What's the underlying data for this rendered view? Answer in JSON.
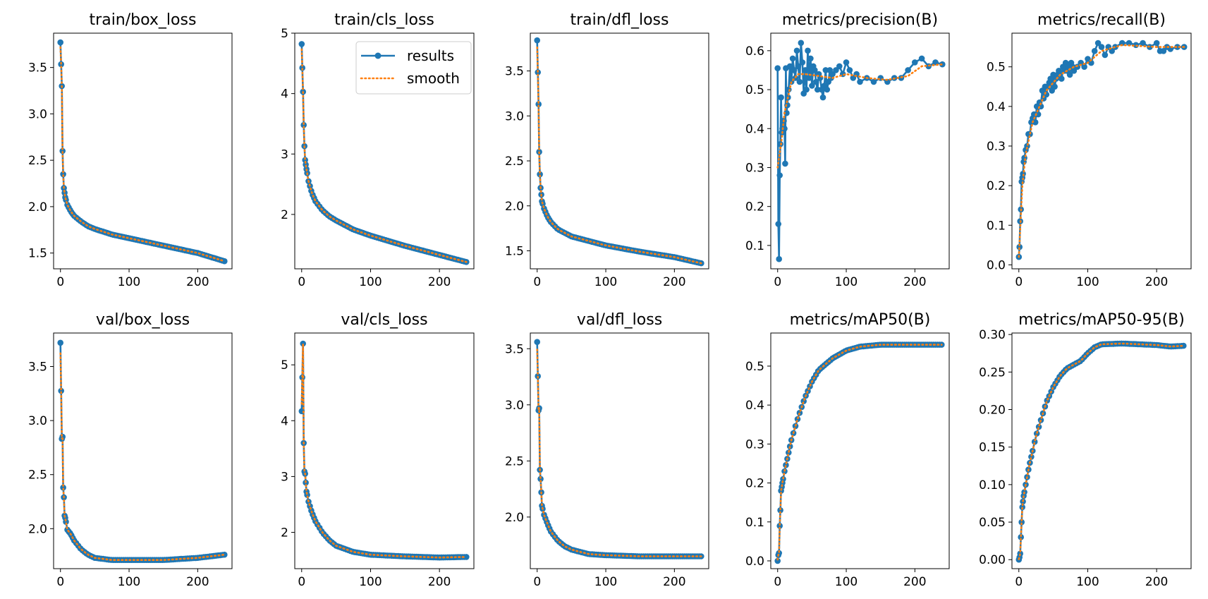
{
  "style": {
    "results_color": "#1f77b4",
    "smooth_color": "#ff7f0e"
  },
  "legend": {
    "results_label": "results",
    "smooth_label": "smooth",
    "location": "top-right of train/cls_loss panel"
  },
  "chart_data": [
    {
      "type": "line",
      "title": "train/box_loss",
      "xlim": [
        -10,
        250
      ],
      "ylim": [
        1.33,
        3.87
      ],
      "x_ticks": [
        "0",
        "100",
        "200"
      ],
      "y_ticks": [
        "1.5",
        "2.0",
        "2.5",
        "3.0",
        "3.5"
      ],
      "anchors": [
        [
          0,
          3.77
        ],
        [
          2,
          3.3
        ],
        [
          3,
          2.6
        ],
        [
          4,
          2.35
        ],
        [
          5,
          2.2
        ],
        [
          7,
          2.1
        ],
        [
          10,
          2.02
        ],
        [
          15,
          1.95
        ],
        [
          20,
          1.9
        ],
        [
          30,
          1.84
        ],
        [
          40,
          1.79
        ],
        [
          50,
          1.76
        ],
        [
          75,
          1.7
        ],
        [
          100,
          1.66
        ],
        [
          150,
          1.58
        ],
        [
          200,
          1.5
        ],
        [
          240,
          1.41
        ]
      ]
    },
    {
      "type": "line",
      "title": "train/cls_loss",
      "xlim": [
        -10,
        250
      ],
      "ylim": [
        1.1,
        5.0
      ],
      "x_ticks": [
        "0",
        "100",
        "200"
      ],
      "y_ticks": [
        "2",
        "3",
        "4",
        "5"
      ],
      "anchors": [
        [
          0,
          4.82
        ],
        [
          2,
          4.03
        ],
        [
          3,
          3.48
        ],
        [
          4,
          3.13
        ],
        [
          5,
          2.9
        ],
        [
          7,
          2.75
        ],
        [
          10,
          2.55
        ],
        [
          15,
          2.35
        ],
        [
          20,
          2.22
        ],
        [
          30,
          2.07
        ],
        [
          40,
          1.97
        ],
        [
          50,
          1.9
        ],
        [
          75,
          1.75
        ],
        [
          100,
          1.65
        ],
        [
          150,
          1.48
        ],
        [
          200,
          1.33
        ],
        [
          240,
          1.21
        ]
      ]
    },
    {
      "type": "line",
      "title": "train/dfl_loss",
      "xlim": [
        -10,
        250
      ],
      "ylim": [
        1.3,
        3.92
      ],
      "x_ticks": [
        "0",
        "100",
        "200"
      ],
      "y_ticks": [
        "1.5",
        "2.0",
        "2.5",
        "3.0",
        "3.5"
      ],
      "anchors": [
        [
          0,
          3.84
        ],
        [
          2,
          3.13
        ],
        [
          3,
          2.6
        ],
        [
          4,
          2.35
        ],
        [
          5,
          2.2
        ],
        [
          7,
          2.05
        ],
        [
          10,
          1.97
        ],
        [
          15,
          1.88
        ],
        [
          20,
          1.82
        ],
        [
          30,
          1.74
        ],
        [
          40,
          1.7
        ],
        [
          50,
          1.66
        ],
        [
          75,
          1.61
        ],
        [
          100,
          1.56
        ],
        [
          150,
          1.49
        ],
        [
          200,
          1.43
        ],
        [
          240,
          1.36
        ]
      ]
    },
    {
      "type": "line",
      "title": "metrics/precision(B)",
      "xlim": [
        -10,
        250
      ],
      "ylim": [
        0.04,
        0.645
      ],
      "x_ticks": [
        "0",
        "100",
        "200"
      ],
      "y_ticks": [
        "0.1",
        "0.2",
        "0.3",
        "0.4",
        "0.5",
        "0.6"
      ],
      "series": [
        {
          "name": "results",
          "x": [
            0,
            1,
            2,
            3,
            4,
            5,
            6,
            7,
            8,
            9,
            10,
            11,
            12,
            13,
            14,
            15,
            16,
            18,
            20,
            22,
            24,
            26,
            28,
            30,
            32,
            34,
            36,
            38,
            40,
            42,
            44,
            46,
            48,
            50,
            52,
            54,
            56,
            58,
            60,
            62,
            64,
            66,
            68,
            70,
            72,
            74,
            76,
            78,
            80,
            85,
            90,
            95,
            100,
            105,
            110,
            115,
            120,
            130,
            140,
            150,
            160,
            170,
            180,
            190,
            200,
            210,
            220,
            230,
            240
          ],
          "y": [
            0.555,
            0.155,
            0.065,
            0.28,
            0.36,
            0.48,
            0.39,
            0.4,
            0.41,
            0.42,
            0.4,
            0.31,
            0.555,
            0.44,
            0.46,
            0.48,
            0.5,
            0.56,
            0.52,
            0.58,
            0.55,
            0.53,
            0.6,
            0.56,
            0.52,
            0.62,
            0.57,
            0.49,
            0.55,
            0.5,
            0.6,
            0.53,
            0.58,
            0.51,
            0.56,
            0.55,
            0.52,
            0.5,
            0.54,
            0.53,
            0.5,
            0.48,
            0.51,
            0.55,
            0.5,
            0.52,
            0.55,
            0.53,
            0.54,
            0.55,
            0.56,
            0.54,
            0.57,
            0.55,
            0.53,
            0.54,
            0.52,
            0.53,
            0.52,
            0.53,
            0.52,
            0.53,
            0.53,
            0.55,
            0.57,
            0.58,
            0.56,
            0.57,
            0.565
          ]
        },
        {
          "name": "smooth",
          "x": [
            0,
            5,
            10,
            20,
            30,
            40,
            60,
            80,
            100,
            130,
            160,
            190,
            210,
            240
          ],
          "y": [
            0.3,
            0.36,
            0.44,
            0.52,
            0.54,
            0.54,
            0.535,
            0.53,
            0.54,
            0.53,
            0.525,
            0.535,
            0.56,
            0.565
          ]
        }
      ]
    },
    {
      "type": "line",
      "title": "metrics/recall(B)",
      "xlim": [
        -10,
        250
      ],
      "ylim": [
        -0.01,
        0.585
      ],
      "x_ticks": [
        "0",
        "100",
        "200"
      ],
      "y_ticks": [
        "0.0",
        "0.1",
        "0.2",
        "0.3",
        "0.4",
        "0.5"
      ],
      "series": [
        {
          "name": "results",
          "x": [
            0,
            1,
            2,
            3,
            4,
            5,
            6,
            7,
            8,
            10,
            12,
            14,
            16,
            18,
            20,
            22,
            24,
            26,
            28,
            30,
            32,
            34,
            36,
            38,
            40,
            42,
            44,
            46,
            48,
            50,
            52,
            54,
            56,
            58,
            60,
            62,
            64,
            66,
            68,
            70,
            72,
            74,
            76,
            78,
            80,
            85,
            90,
            95,
            100,
            105,
            110,
            115,
            120,
            125,
            130,
            135,
            140,
            150,
            160,
            170,
            180,
            190,
            200,
            205,
            210,
            215,
            220,
            230,
            240
          ],
          "y": [
            0.02,
            0.045,
            0.11,
            0.14,
            0.21,
            0.22,
            0.23,
            0.26,
            0.27,
            0.29,
            0.3,
            0.33,
            0.33,
            0.36,
            0.37,
            0.38,
            0.36,
            0.4,
            0.38,
            0.41,
            0.4,
            0.44,
            0.42,
            0.45,
            0.43,
            0.45,
            0.46,
            0.47,
            0.44,
            0.48,
            0.45,
            0.47,
            0.48,
            0.49,
            0.48,
            0.47,
            0.5,
            0.49,
            0.51,
            0.49,
            0.5,
            0.48,
            0.51,
            0.5,
            0.49,
            0.5,
            0.51,
            0.5,
            0.52,
            0.51,
            0.54,
            0.56,
            0.55,
            0.53,
            0.55,
            0.54,
            0.55,
            0.56,
            0.56,
            0.555,
            0.56,
            0.55,
            0.56,
            0.54,
            0.54,
            0.55,
            0.545,
            0.55,
            0.55
          ]
        },
        {
          "name": "smooth",
          "x": [
            0,
            5,
            10,
            20,
            30,
            40,
            60,
            80,
            100,
            120,
            150,
            200,
            240
          ],
          "y": [
            0.02,
            0.2,
            0.28,
            0.36,
            0.4,
            0.44,
            0.48,
            0.5,
            0.51,
            0.54,
            0.555,
            0.55,
            0.55
          ]
        }
      ]
    },
    {
      "type": "line",
      "title": "val/box_loss",
      "xlim": [
        -10,
        250
      ],
      "ylim": [
        1.63,
        3.81
      ],
      "x_ticks": [
        "0",
        "100",
        "200"
      ],
      "y_ticks": [
        "2.0",
        "2.5",
        "3.0",
        "3.5"
      ],
      "anchors": [
        [
          0,
          3.72
        ],
        [
          2,
          2.83
        ],
        [
          3,
          2.85
        ],
        [
          4,
          2.38
        ],
        [
          5,
          2.29
        ],
        [
          6,
          2.12
        ],
        [
          7,
          2.1
        ],
        [
          10,
          1.99
        ],
        [
          15,
          1.95
        ],
        [
          20,
          1.89
        ],
        [
          30,
          1.81
        ],
        [
          40,
          1.76
        ],
        [
          50,
          1.73
        ],
        [
          75,
          1.71
        ],
        [
          100,
          1.71
        ],
        [
          150,
          1.71
        ],
        [
          200,
          1.73
        ],
        [
          240,
          1.76
        ]
      ]
    },
    {
      "type": "line",
      "title": "val/cls_loss",
      "xlim": [
        -10,
        250
      ],
      "ylim": [
        1.35,
        5.57
      ],
      "x_ticks": [
        "0",
        "100",
        "200"
      ],
      "y_ticks": [
        "2",
        "3",
        "4",
        "5"
      ],
      "anchors": [
        [
          0,
          4.17
        ],
        [
          2,
          5.38
        ],
        [
          3,
          3.6
        ],
        [
          4,
          3.09
        ],
        [
          5,
          3.05
        ],
        [
          7,
          2.73
        ],
        [
          10,
          2.55
        ],
        [
          15,
          2.35
        ],
        [
          20,
          2.2
        ],
        [
          30,
          2.0
        ],
        [
          40,
          1.86
        ],
        [
          50,
          1.76
        ],
        [
          75,
          1.65
        ],
        [
          100,
          1.6
        ],
        [
          150,
          1.57
        ],
        [
          200,
          1.55
        ],
        [
          240,
          1.56
        ]
      ]
    },
    {
      "type": "line",
      "title": "val/dfl_loss",
      "xlim": [
        -10,
        250
      ],
      "ylim": [
        1.54,
        3.64
      ],
      "x_ticks": [
        "0",
        "100",
        "200"
      ],
      "y_ticks": [
        "2.0",
        "2.5",
        "3.0",
        "3.5"
      ],
      "anchors": [
        [
          0,
          3.56
        ],
        [
          2,
          2.95
        ],
        [
          3,
          2.97
        ],
        [
          4,
          2.42
        ],
        [
          5,
          2.34
        ],
        [
          6,
          2.22
        ],
        [
          7,
          2.1
        ],
        [
          10,
          2.02
        ],
        [
          15,
          1.94
        ],
        [
          20,
          1.87
        ],
        [
          30,
          1.79
        ],
        [
          40,
          1.74
        ],
        [
          50,
          1.71
        ],
        [
          75,
          1.67
        ],
        [
          100,
          1.66
        ],
        [
          150,
          1.65
        ],
        [
          200,
          1.65
        ],
        [
          240,
          1.65
        ]
      ]
    },
    {
      "type": "line",
      "title": "metrics/mAP50(B)",
      "xlim": [
        -10,
        250
      ],
      "ylim": [
        -0.02,
        0.585
      ],
      "x_ticks": [
        "0",
        "100",
        "200"
      ],
      "y_ticks": [
        "0.0",
        "0.1",
        "0.2",
        "0.3",
        "0.4",
        "0.5"
      ],
      "anchors": [
        [
          0,
          0.0
        ],
        [
          1,
          0.015
        ],
        [
          2,
          0.02
        ],
        [
          3,
          0.09
        ],
        [
          4,
          0.13
        ],
        [
          5,
          0.18
        ],
        [
          7,
          0.2
        ],
        [
          10,
          0.23
        ],
        [
          15,
          0.27
        ],
        [
          20,
          0.31
        ],
        [
          25,
          0.34
        ],
        [
          30,
          0.37
        ],
        [
          40,
          0.42
        ],
        [
          50,
          0.46
        ],
        [
          60,
          0.49
        ],
        [
          70,
          0.505
        ],
        [
          80,
          0.52
        ],
        [
          100,
          0.54
        ],
        [
          120,
          0.55
        ],
        [
          150,
          0.555
        ],
        [
          200,
          0.555
        ],
        [
          240,
          0.555
        ]
      ]
    },
    {
      "type": "line",
      "title": "metrics/mAP50-95(B)",
      "xlim": [
        -10,
        250
      ],
      "ylim": [
        -0.012,
        0.302
      ],
      "x_ticks": [
        "0",
        "100",
        "200"
      ],
      "y_ticks": [
        "0.00",
        "0.05",
        "0.10",
        "0.15",
        "0.20",
        "0.25",
        "0.30"
      ],
      "anchors": [
        [
          0,
          0.0
        ],
        [
          1,
          0.003
        ],
        [
          2,
          0.008
        ],
        [
          3,
          0.03
        ],
        [
          4,
          0.05
        ],
        [
          5,
          0.07
        ],
        [
          7,
          0.085
        ],
        [
          10,
          0.1
        ],
        [
          15,
          0.125
        ],
        [
          20,
          0.145
        ],
        [
          25,
          0.165
        ],
        [
          30,
          0.18
        ],
        [
          40,
          0.21
        ],
        [
          50,
          0.23
        ],
        [
          60,
          0.245
        ],
        [
          70,
          0.255
        ],
        [
          80,
          0.26
        ],
        [
          90,
          0.265
        ],
        [
          100,
          0.275
        ],
        [
          110,
          0.283
        ],
        [
          120,
          0.287
        ],
        [
          150,
          0.288
        ],
        [
          200,
          0.286
        ],
        [
          220,
          0.284
        ],
        [
          240,
          0.285
        ]
      ]
    }
  ]
}
